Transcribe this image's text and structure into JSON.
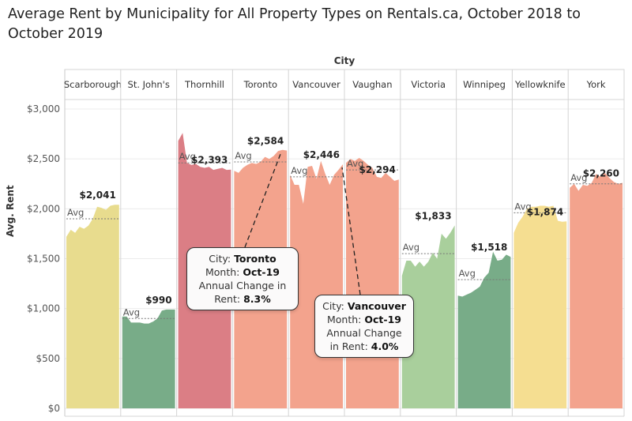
{
  "title": "Average Rent by Municipality for All Property Types on Rentals.ca, October 2018 to October 2019",
  "chart_data": {
    "type": "area",
    "title": "Average Rent by Municipality for All Property Types on Rentals.ca, October 2018 to October 2019",
    "column_header": "City",
    "ylabel": "Avg. Rent",
    "ylim": [
      0,
      3000
    ],
    "yticks": [
      0,
      500,
      1000,
      1500,
      2000,
      2500,
      3000
    ],
    "ytick_labels": [
      "$0",
      "$500",
      "$1,000",
      "$1,500",
      "$2,000",
      "$2,500",
      "$3,000"
    ],
    "avg_label": "Avg",
    "grid": true,
    "panels": [
      {
        "city": "Scarborough",
        "color": "#e8dc8e",
        "avg": 1900,
        "last_label": "$2,041",
        "values": [
          1720,
          1790,
          1760,
          1820,
          1800,
          1830,
          1900,
          2020,
          2010,
          1990,
          2030,
          2041,
          2041
        ]
      },
      {
        "city": "St. John's",
        "color": "#78ac88",
        "avg": 900,
        "last_label": "$990",
        "values": [
          920,
          920,
          860,
          860,
          860,
          850,
          850,
          870,
          900,
          980,
          990,
          990,
          990
        ]
      },
      {
        "city": "Thornhill",
        "color": "#db7e85",
        "avg": 2460,
        "last_label": "$2,393",
        "values": [
          2680,
          2760,
          2460,
          2440,
          2450,
          2420,
          2410,
          2420,
          2390,
          2400,
          2410,
          2390,
          2393
        ]
      },
      {
        "city": "Toronto",
        "color": "#f3a38d",
        "avg": 2470,
        "last_label": "$2,584",
        "values": [
          2380,
          2360,
          2410,
          2440,
          2460,
          2450,
          2470,
          2520,
          2500,
          2530,
          2580,
          2590,
          2584
        ]
      },
      {
        "city": "Vancouver",
        "color": "#f3a38d",
        "avg": 2320,
        "last_label": "$2,446",
        "values": [
          2340,
          2240,
          2240,
          2050,
          2420,
          2430,
          2300,
          2480,
          2350,
          2240,
          2340,
          2390,
          2446
        ]
      },
      {
        "city": "Vaughan",
        "color": "#f3a38d",
        "avg": 2390,
        "last_label": "$2,294",
        "values": [
          2460,
          2500,
          2480,
          2510,
          2480,
          2440,
          2410,
          2320,
          2310,
          2360,
          2320,
          2280,
          2294
        ]
      },
      {
        "city": "Victoria",
        "color": "#a9cf9c",
        "avg": 1550,
        "last_label": "$1,833",
        "values": [
          1330,
          1480,
          1480,
          1420,
          1470,
          1420,
          1470,
          1560,
          1500,
          1750,
          1700,
          1760,
          1833
        ]
      },
      {
        "city": "Winnipeg",
        "color": "#78ac88",
        "avg": 1290,
        "last_label": "$1,518",
        "values": [
          1130,
          1120,
          1140,
          1160,
          1190,
          1220,
          1310,
          1360,
          1570,
          1480,
          1490,
          1540,
          1518
        ]
      },
      {
        "city": "Yellowknife",
        "color": "#f5de91",
        "avg": 1960,
        "last_label": "$1,874",
        "values": [
          1760,
          1860,
          1920,
          2000,
          2020,
          2020,
          2030,
          2030,
          2020,
          2030,
          1880,
          1870,
          1874
        ]
      },
      {
        "city": "York",
        "color": "#f3a38d",
        "avg": 2250,
        "last_label": "$2,260",
        "values": [
          2210,
          2250,
          2180,
          2240,
          2230,
          2260,
          2350,
          2320,
          2360,
          2310,
          2270,
          2250,
          2260
        ]
      }
    ]
  },
  "tooltips": [
    {
      "city_label": "City:",
      "city": "Toronto",
      "month_label": "Month:",
      "month": "Oct-19",
      "change_line1": "Annual Change in",
      "change_line2_label": "Rent:",
      "change": "8.3%"
    },
    {
      "city_label": "City:",
      "city": "Vancouver",
      "month_label": "Month:",
      "month": "Oct-19",
      "change_line1": "Annual Change",
      "change_line2_label": "in Rent:",
      "change": "4.0%"
    }
  ]
}
